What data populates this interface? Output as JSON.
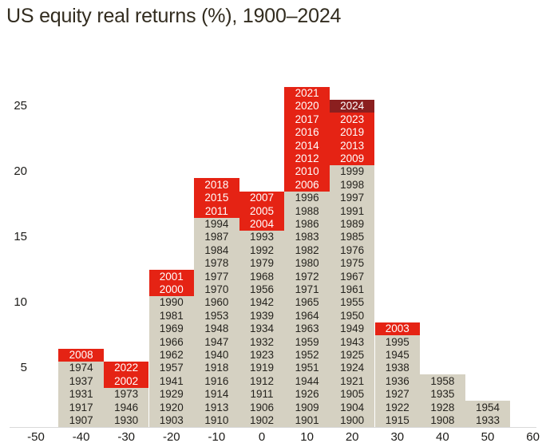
{
  "title": "US equity real returns (%), 1900–2024",
  "colors": {
    "red": "#e52314",
    "dark_red": "#8b1f1f",
    "cell_bg": "#d5d1c2",
    "cell_text": "#25231e",
    "axis_text": "#1c1b18",
    "axis_line": "#d9d9d9",
    "title_color": "#322c1f"
  },
  "chart_data": {
    "type": "bar",
    "subtype": "stacked-year-histogram",
    "title": "US equity real returns (%), 1900–2024",
    "xlabel": "",
    "ylabel": "",
    "bin_width": 10,
    "x_ticks": [
      -50,
      -40,
      -30,
      -20,
      -10,
      0,
      10,
      20,
      30,
      40,
      50,
      60
    ],
    "y_ticks": [
      5,
      10,
      15,
      20,
      25
    ],
    "ylim": [
      0,
      27
    ],
    "grid": false,
    "legend": false,
    "order": "bottom-to-top",
    "highlight_from": 2000,
    "special_year": "2024",
    "columns": [
      {
        "center": -40,
        "count": 6,
        "years": [
          "1907",
          "1917",
          "1931",
          "1937",
          "1974",
          "2008"
        ]
      },
      {
        "center": -30,
        "count": 5,
        "years": [
          "1930",
          "1946",
          "1973",
          "2002",
          "2022"
        ]
      },
      {
        "center": -20,
        "count": 12,
        "years": [
          "1903",
          "1920",
          "1929",
          "1941",
          "1957",
          "1962",
          "1966",
          "1969",
          "1981",
          "1990",
          "2000",
          "2001"
        ]
      },
      {
        "center": -10,
        "count": 19,
        "years": [
          "1910",
          "1913",
          "1914",
          "1916",
          "1918",
          "1940",
          "1947",
          "1948",
          "1953",
          "1960",
          "1970",
          "1977",
          "1978",
          "1984",
          "1987",
          "1994",
          "2011",
          "2015",
          "2018"
        ]
      },
      {
        "center": 0,
        "count": 18,
        "years": [
          "1902",
          "1906",
          "1911",
          "1912",
          "1919",
          "1923",
          "1932",
          "1934",
          "1939",
          "1942",
          "1956",
          "1968",
          "1979",
          "1992",
          "1993",
          "2004",
          "2005",
          "2007"
        ]
      },
      {
        "center": 10,
        "count": 26,
        "years": [
          "1901",
          "1909",
          "1926",
          "1944",
          "1951",
          "1952",
          "1959",
          "1963",
          "1964",
          "1965",
          "1971",
          "1972",
          "1980",
          "1982",
          "1983",
          "1986",
          "1988",
          "1996",
          "2006",
          "2010",
          "2012",
          "2014",
          "2016",
          "2017",
          "2020",
          "2021"
        ]
      },
      {
        "center": 20,
        "count": 25,
        "years": [
          "1900",
          "1904",
          "1905",
          "1921",
          "1924",
          "1925",
          "1943",
          "1949",
          "1950",
          "1955",
          "1961",
          "1967",
          "1975",
          "1976",
          "1985",
          "1989",
          "1991",
          "1997",
          "1998",
          "1999",
          "2009",
          "2013",
          "2019",
          "2023",
          "2024"
        ]
      },
      {
        "center": 30,
        "count": 8,
        "years": [
          "1915",
          "1922",
          "1927",
          "1936",
          "1938",
          "1945",
          "1995",
          "2003"
        ]
      },
      {
        "center": 40,
        "count": 4,
        "years": [
          "1908",
          "1928",
          "1935",
          "1958"
        ]
      },
      {
        "center": 50,
        "count": 2,
        "years": [
          "1933",
          "1954"
        ]
      }
    ]
  }
}
